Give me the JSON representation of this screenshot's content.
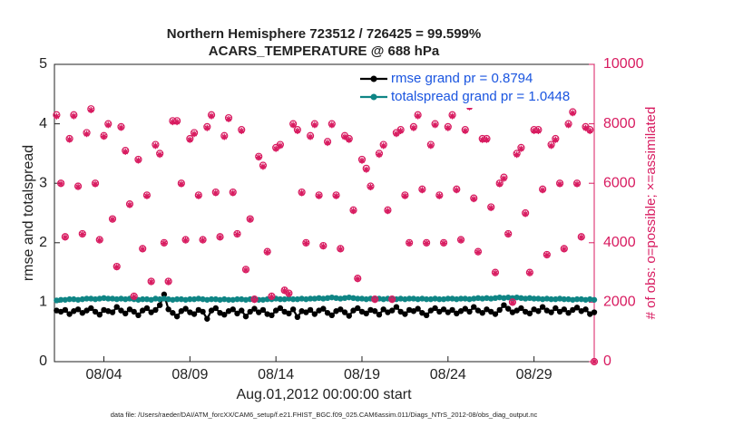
{
  "chart_data": {
    "type": "line",
    "title": "Northern Hemisphere 723512 / 726425 = 99.599%",
    "subtitle": "ACARS_TEMPERATURE @ 688 hPa",
    "y_label": "rmse and totalspread",
    "y2_label": "# of obs: o=possible; ×=assimilated",
    "x_label": "Aug.01,2012 00:00:00 start",
    "footnote": "data file: /Users/raeder/DAI/ATM_forcXX/CAM6_setup/f.e21.FHIST_BGC.f09_025.CAM6assim.011/Diags_NTrS_2012-08/obs_diag_output.nc",
    "legend": "northeast",
    "xlim": [
      0.125,
      31.5
    ],
    "xticks": [
      {
        "value": 3,
        "label": "08/04"
      },
      {
        "value": 8,
        "label": "08/09"
      },
      {
        "value": 13,
        "label": "08/14"
      },
      {
        "value": 18,
        "label": "08/19"
      },
      {
        "value": 23,
        "label": "08/24"
      },
      {
        "value": 28,
        "label": "08/29"
      }
    ],
    "ylim": [
      0,
      5
    ],
    "yticks": [
      0,
      1,
      2,
      3,
      4,
      5
    ],
    "y2lim": [
      0,
      10000
    ],
    "y2ticks": [
      0,
      2000,
      4000,
      6000,
      8000,
      10000
    ],
    "x": [
      0.25,
      0.5,
      0.75,
      1,
      1.25,
      1.5,
      1.75,
      2,
      2.25,
      2.5,
      2.75,
      3,
      3.25,
      3.5,
      3.75,
      4,
      4.25,
      4.5,
      4.75,
      5,
      5.25,
      5.5,
      5.75,
      6,
      6.25,
      6.5,
      6.75,
      7,
      7.25,
      7.5,
      7.75,
      8,
      8.25,
      8.5,
      8.75,
      9,
      9.25,
      9.5,
      9.75,
      10,
      10.25,
      10.5,
      10.75,
      11,
      11.25,
      11.5,
      11.75,
      12,
      12.25,
      12.5,
      12.75,
      13,
      13.25,
      13.5,
      13.75,
      14,
      14.25,
      14.5,
      14.75,
      15,
      15.25,
      15.5,
      15.75,
      16,
      16.25,
      16.5,
      16.75,
      17,
      17.25,
      17.5,
      17.75,
      18,
      18.25,
      18.5,
      18.75,
      19,
      19.25,
      19.5,
      19.75,
      20,
      20.25,
      20.5,
      20.75,
      21,
      21.25,
      21.5,
      21.75,
      22,
      22.25,
      22.5,
      22.75,
      23,
      23.25,
      23.5,
      23.75,
      24,
      24.25,
      24.5,
      24.75,
      25,
      25.25,
      25.5,
      25.75,
      26,
      26.25,
      26.5,
      26.75,
      27,
      27.25,
      27.5,
      27.75,
      28,
      28.25,
      28.5,
      28.75,
      29,
      29.25,
      29.5,
      29.75,
      30,
      30.25,
      30.5,
      30.75,
      31,
      31.25,
      31.5
    ],
    "series": [
      {
        "name": "rmse grand pr = 0.8794",
        "color": "#000000",
        "marker": "circle",
        "line": true,
        "values": [
          0.86,
          0.84,
          0.87,
          0.8,
          0.85,
          0.88,
          0.82,
          0.86,
          0.9,
          0.84,
          0.79,
          0.87,
          0.85,
          0.83,
          0.92,
          0.86,
          0.81,
          0.88,
          0.84,
          0.78,
          0.86,
          0.9,
          0.83,
          0.87,
          0.95,
          1.13,
          0.88,
          0.82,
          0.76,
          0.85,
          0.89,
          0.83,
          0.8,
          0.87,
          0.84,
          0.72,
          0.86,
          0.9,
          0.82,
          0.79,
          0.85,
          0.88,
          0.81,
          0.86,
          0.76,
          0.84,
          0.89,
          0.83,
          0.87,
          0.8,
          0.78,
          0.86,
          0.9,
          0.84,
          0.81,
          0.88,
          0.75,
          0.85,
          0.83,
          0.87,
          0.8,
          0.86,
          0.89,
          0.82,
          0.78,
          0.85,
          0.88,
          0.83,
          0.77,
          0.86,
          0.9,
          0.84,
          0.81,
          0.87,
          0.85,
          0.79,
          0.88,
          0.83,
          0.86,
          0.92,
          0.84,
          0.8,
          0.87,
          0.85,
          0.89,
          0.82,
          0.78,
          0.86,
          0.9,
          0.84,
          0.88,
          0.83,
          0.87,
          0.81,
          0.85,
          0.89,
          0.84,
          0.92,
          0.86,
          0.82,
          0.88,
          0.84,
          0.8,
          0.87,
          0.95,
          0.89,
          0.83,
          0.86,
          0.9,
          0.84,
          0.81,
          0.88,
          0.85,
          0.92,
          0.86,
          0.83,
          0.9,
          0.84,
          0.88,
          0.82,
          0.87,
          0.91,
          0.85,
          0.88,
          0.8,
          0.83
        ]
      },
      {
        "name": "totalspread grand pr = 1.0448",
        "color": "#0f8585",
        "marker": "circle",
        "line": true,
        "values": [
          1.03,
          1.04,
          1.04,
          1.05,
          1.05,
          1.04,
          1.05,
          1.06,
          1.06,
          1.05,
          1.06,
          1.07,
          1.06,
          1.06,
          1.05,
          1.06,
          1.05,
          1.06,
          1.05,
          1.04,
          1.05,
          1.05,
          1.04,
          1.06,
          1.05,
          1.06,
          1.05,
          1.04,
          1.05,
          1.05,
          1.04,
          1.05,
          1.05,
          1.06,
          1.05,
          1.04,
          1.05,
          1.05,
          1.04,
          1.05,
          1.04,
          1.04,
          1.05,
          1.05,
          1.04,
          1.05,
          1.05,
          1.04,
          1.04,
          1.05,
          1.05,
          1.06,
          1.05,
          1.05,
          1.06,
          1.05,
          1.05,
          1.06,
          1.05,
          1.06,
          1.06,
          1.07,
          1.06,
          1.07,
          1.08,
          1.07,
          1.06,
          1.07,
          1.08,
          1.07,
          1.06,
          1.06,
          1.05,
          1.06,
          1.05,
          1.06,
          1.05,
          1.06,
          1.05,
          1.05,
          1.06,
          1.05,
          1.06,
          1.06,
          1.05,
          1.06,
          1.05,
          1.05,
          1.06,
          1.05,
          1.05,
          1.06,
          1.06,
          1.05,
          1.06,
          1.06,
          1.05,
          1.06,
          1.07,
          1.06,
          1.07,
          1.06,
          1.07,
          1.08,
          1.07,
          1.08,
          1.07,
          1.08,
          1.07,
          1.06,
          1.07,
          1.06,
          1.06,
          1.05,
          1.06,
          1.05,
          1.05,
          1.06,
          1.05,
          1.05,
          1.04,
          1.05,
          1.05,
          1.04,
          1.05,
          1.04
        ]
      },
      {
        "color": "#d81b60",
        "marker": "circle",
        "line": false,
        "axis": "y2",
        "values": [
          8300,
          6000,
          4200,
          7500,
          8300,
          5900,
          4300,
          7700,
          8500,
          6000,
          4100,
          7600,
          8000,
          4800,
          3200,
          7900,
          7100,
          5300,
          2200,
          6800,
          3800,
          5600,
          2700,
          7300,
          7000,
          4000,
          2700,
          8100,
          8100,
          6000,
          4100,
          7500,
          7700,
          5600,
          4100,
          7900,
          8300,
          5700,
          4200,
          7600,
          8200,
          5700,
          4300,
          7800,
          3100,
          4800,
          2100,
          6900,
          6600,
          3700,
          2200,
          7200,
          7300,
          2400,
          2300,
          8000,
          7800,
          5700,
          4000,
          7600,
          8000,
          5600,
          3900,
          7400,
          8000,
          5600,
          3800,
          7600,
          7500,
          5100,
          2800,
          6800,
          6500,
          5900,
          2100,
          7000,
          7300,
          5100,
          2100,
          7700,
          7800,
          5600,
          4000,
          7900,
          8300,
          5800,
          4000,
          7300,
          8000,
          5600,
          4000,
          7900,
          8300,
          5800,
          4100,
          7800,
          8600,
          5500,
          3700,
          7500,
          7500,
          5200,
          3000,
          6000,
          6200,
          4300,
          2000,
          7000,
          7200,
          5000,
          3000,
          7800,
          7800,
          5800,
          3600,
          7300,
          7500,
          6000,
          3800,
          8000,
          8400,
          6000,
          4200,
          7900,
          7800,
          0
        ]
      },
      {
        "color": "#d81b60",
        "marker": "asterisk",
        "line": false,
        "axis": "y2",
        "values": [
          8250,
          5980,
          4180,
          7470,
          8260,
          5880,
          4280,
          7660,
          8460,
          5970,
          4080,
          7570,
          7960,
          4780,
          3180,
          7870,
          7060,
          5270,
          2180,
          6770,
          3780,
          5570,
          2680,
          7260,
          6960,
          3980,
          2680,
          8060,
          8060,
          5970,
          4080,
          7460,
          7660,
          5570,
          4080,
          7860,
          8260,
          5670,
          4180,
          7560,
          8160,
          5670,
          4280,
          7760,
          3080,
          4780,
          2080,
          6870,
          6560,
          3680,
          2180,
          7160,
          7260,
          2380,
          2280,
          7960,
          7760,
          5670,
          3980,
          7560,
          7960,
          5570,
          3880,
          7360,
          7960,
          5570,
          3780,
          7560,
          7460,
          5070,
          2780,
          6760,
          6460,
          5870,
          2080,
          6960,
          7260,
          5070,
          2080,
          7660,
          7760,
          5570,
          3980,
          7860,
          8260,
          5770,
          3980,
          7260,
          7960,
          5570,
          3980,
          7860,
          8260,
          5770,
          4080,
          7760,
          8560,
          5470,
          3680,
          7460,
          7460,
          5170,
          2980,
          5970,
          6160,
          4280,
          1980,
          6960,
          7160,
          4970,
          2980,
          7760,
          7760,
          5770,
          3580,
          7260,
          7460,
          5970,
          3780,
          7960,
          8360,
          5970,
          4180,
          7860,
          7760,
          0
        ]
      }
    ]
  }
}
